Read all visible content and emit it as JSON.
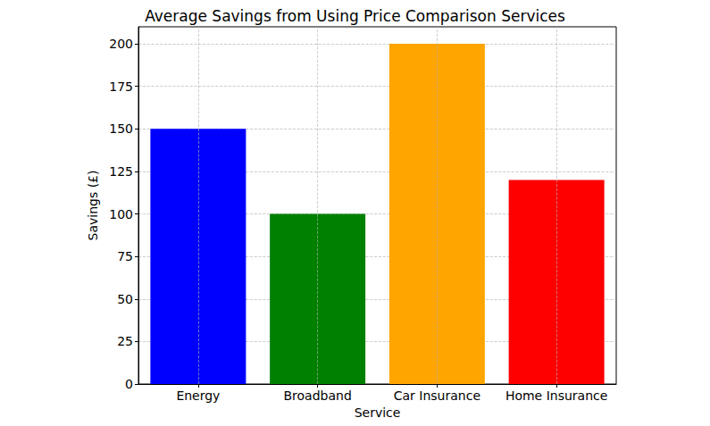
{
  "chart_data": {
    "type": "bar",
    "title": "Average Savings from Using Price Comparison Services",
    "x_label": "Service",
    "y_label": "Savings (£)",
    "categories": [
      "Energy",
      "Broadband",
      "Car Insurance",
      "Home Insurance"
    ],
    "values": [
      150,
      100,
      200,
      120
    ],
    "colors": [
      "#0000ff",
      "#008000",
      "#ffa500",
      "#ff0000"
    ],
    "ylim": [
      0,
      210
    ],
    "yticks": [
      0,
      25,
      50,
      75,
      100,
      125,
      150,
      175,
      200
    ],
    "grid": true
  }
}
